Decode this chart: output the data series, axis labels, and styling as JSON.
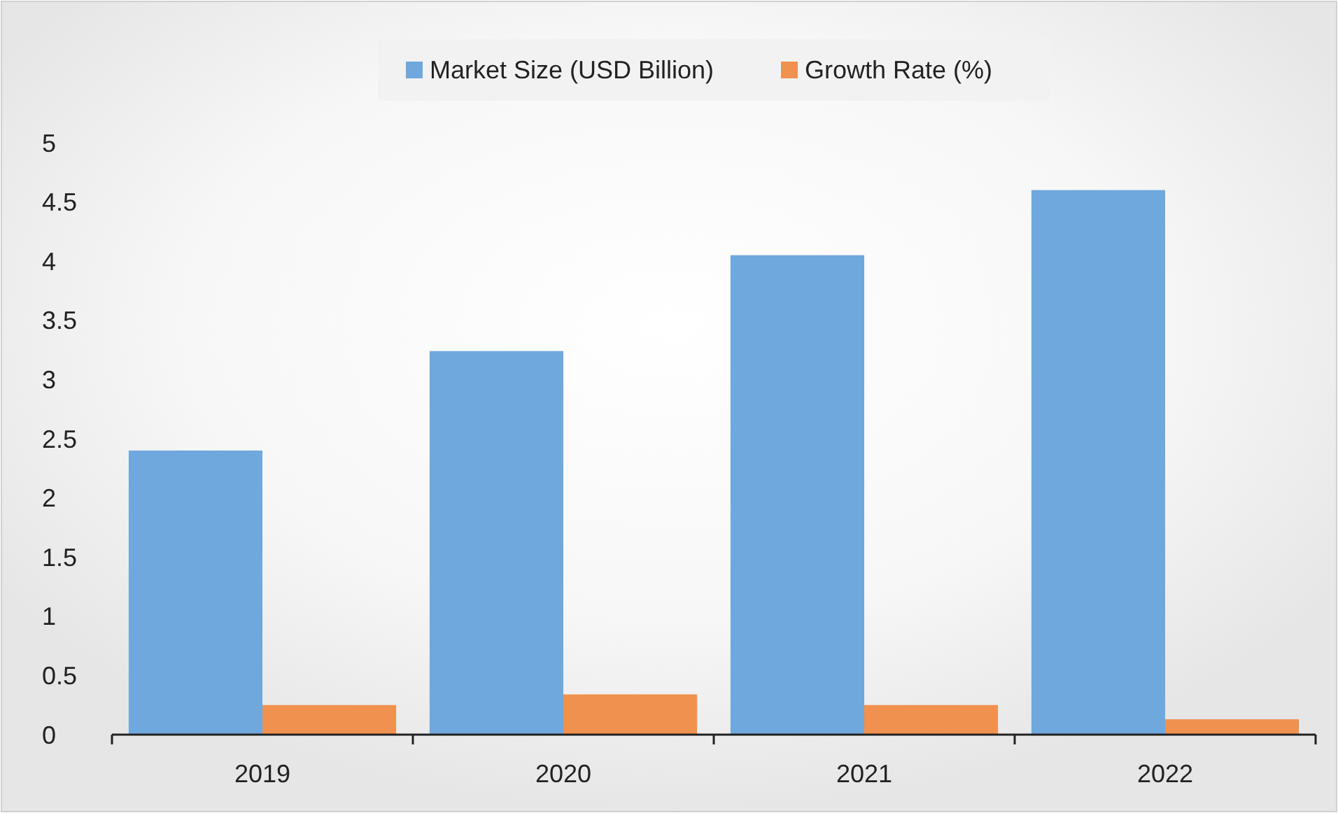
{
  "chart_data": {
    "type": "bar",
    "categories": [
      "2019",
      "2020",
      "2021",
      "2022"
    ],
    "series": [
      {
        "name": "Market Size (USD Billion)",
        "color": "#6fa8dc",
        "values": [
          2.4,
          3.24,
          4.05,
          4.6
        ]
      },
      {
        "name": "Growth Rate (%)",
        "color": "#f0914f",
        "values": [
          0.25,
          0.34,
          0.25,
          0.13
        ]
      }
    ],
    "ylim": [
      0,
      5
    ],
    "yticks": [
      0,
      0.5,
      1,
      1.5,
      2,
      2.5,
      3,
      3.5,
      4,
      4.5,
      5
    ],
    "grid": false,
    "legend": "top"
  }
}
